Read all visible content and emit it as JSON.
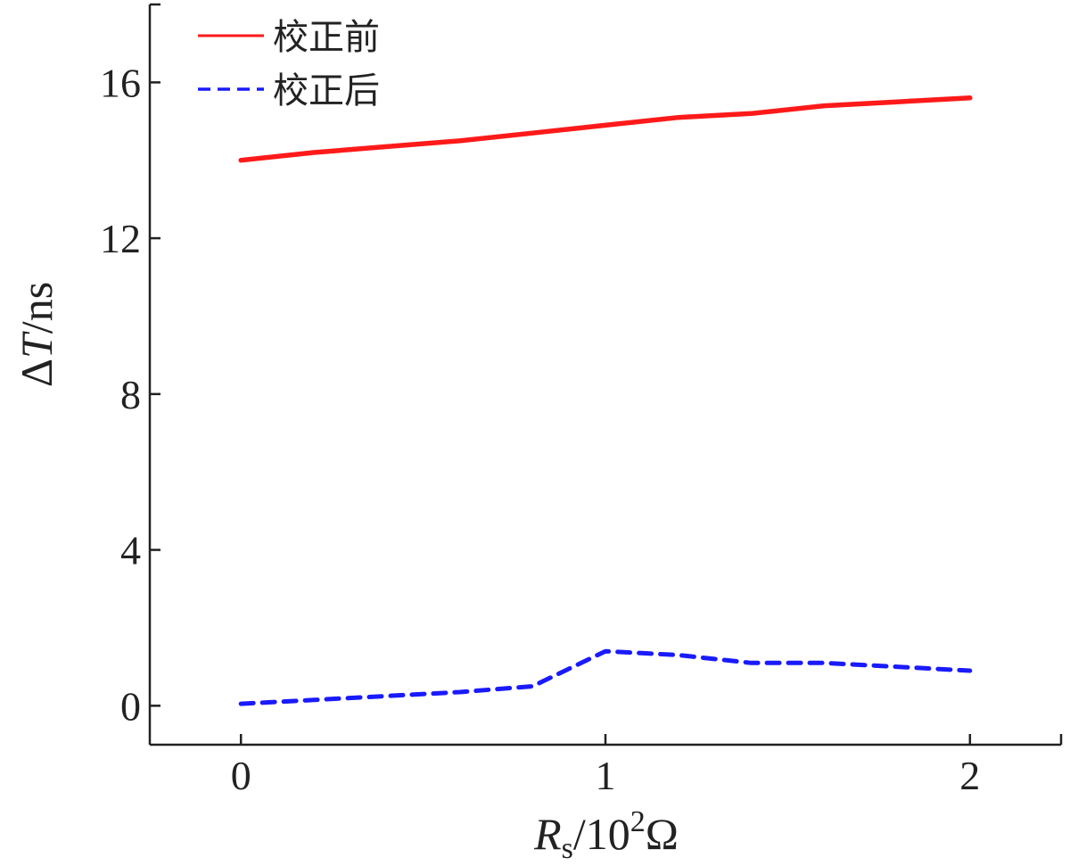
{
  "chart_data": {
    "type": "line",
    "title": "",
    "x_label": {
      "main": "R",
      "sub": "s",
      "rest": "/10",
      "sup": "2",
      "unit": "Ω"
    },
    "y_label": {
      "delta": "Δ",
      "main": "T",
      "rest": "/ns"
    },
    "x_ticks": [
      0,
      1,
      2
    ],
    "y_ticks": [
      0,
      4,
      8,
      12,
      16
    ],
    "xlim": [
      -0.25,
      2.25
    ],
    "ylim": [
      -1,
      18
    ],
    "grid": false,
    "legend_position": "top-left",
    "series": [
      {
        "name": "校正前",
        "color": "#ff1a1a",
        "dash": "solid",
        "x": [
          0,
          0.2,
          0.4,
          0.6,
          0.8,
          1.0,
          1.2,
          1.4,
          1.6,
          1.8,
          2.0
        ],
        "y": [
          14.0,
          14.2,
          14.35,
          14.5,
          14.7,
          14.9,
          15.1,
          15.2,
          15.4,
          15.5,
          15.6
        ]
      },
      {
        "name": "校正后",
        "color": "#1a1aff",
        "dash": "dashed",
        "x": [
          0,
          0.2,
          0.4,
          0.6,
          0.8,
          1.0,
          1.2,
          1.4,
          1.6,
          1.8,
          2.0
        ],
        "y": [
          0.05,
          0.15,
          0.25,
          0.35,
          0.5,
          1.4,
          1.3,
          1.1,
          1.1,
          1.0,
          0.9
        ]
      }
    ]
  }
}
